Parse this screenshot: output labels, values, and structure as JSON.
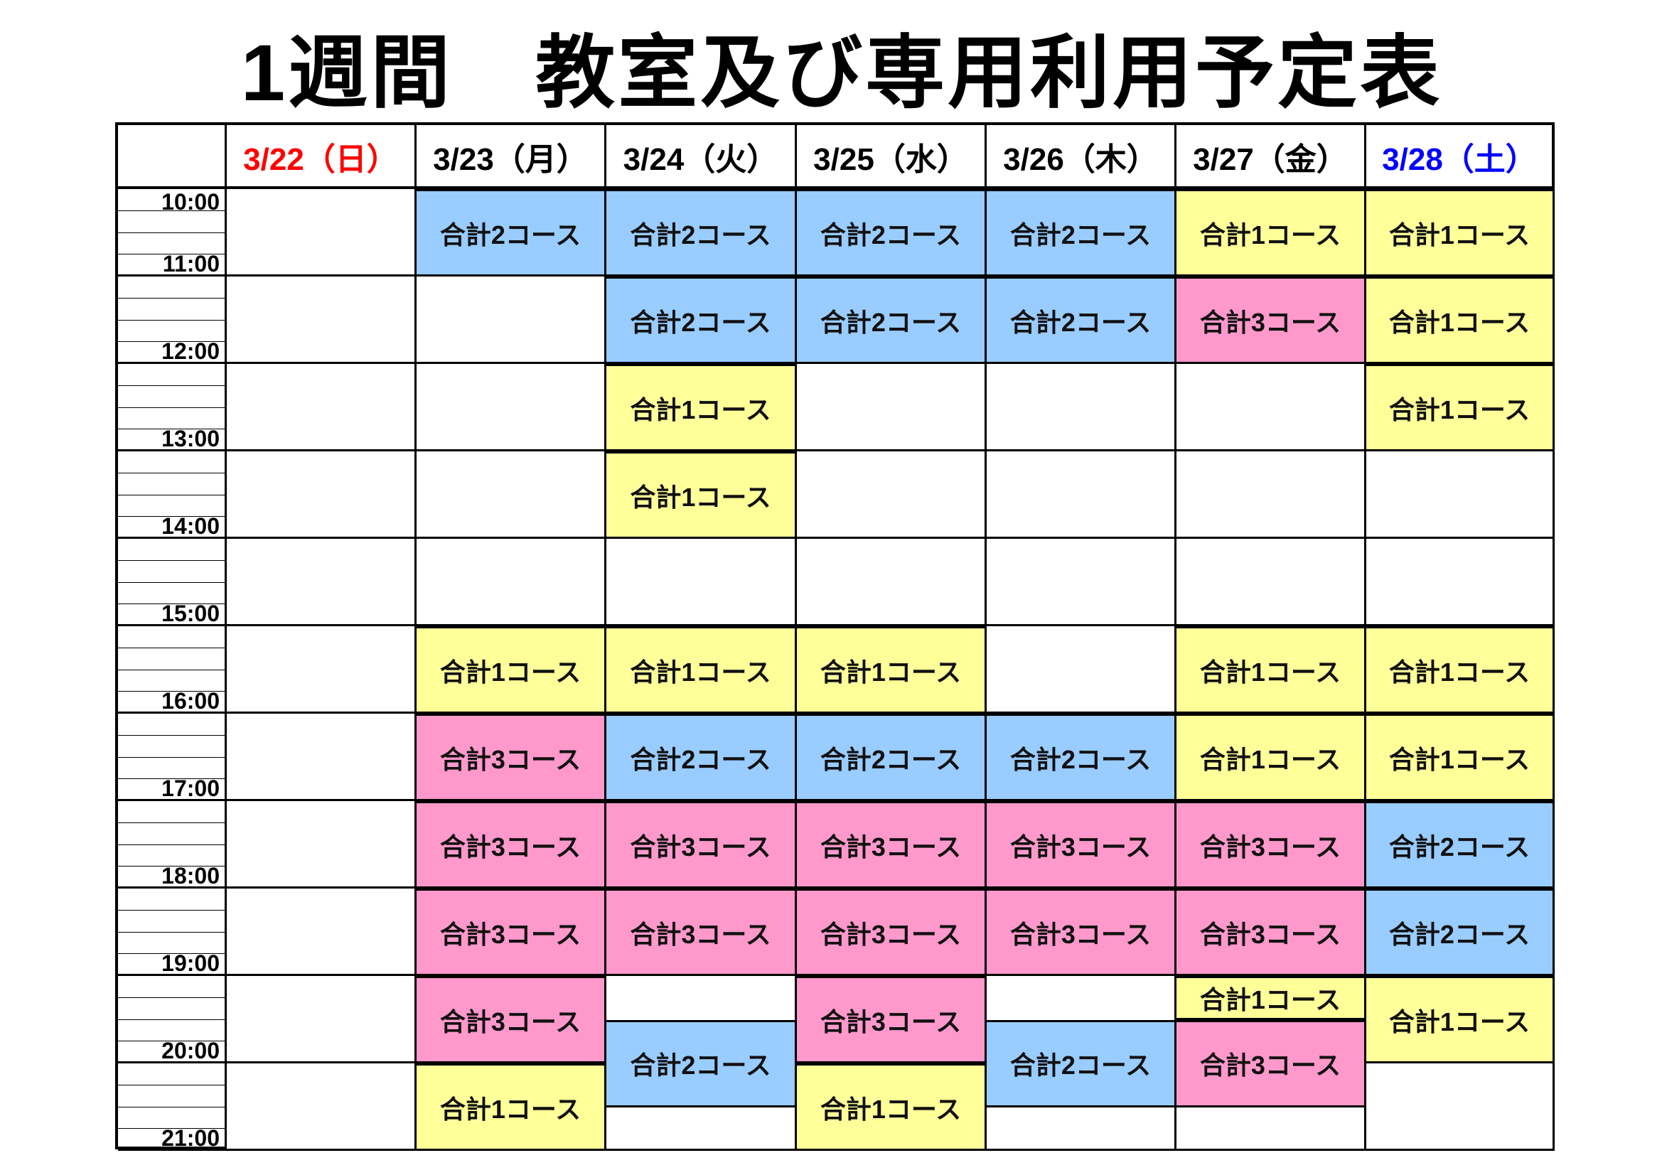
{
  "title": "1週間　教室及び専用利用予定表",
  "colors": {
    "count_1": "#ffff99",
    "count_2": "#99ccff",
    "count_3": "#ff99cc",
    "sunday": "#ff0000",
    "saturday": "#0000ff",
    "weekday": "#000000"
  },
  "times": [
    "10:00",
    "11:00",
    "12:00",
    "13:00",
    "14:00",
    "15:00",
    "16:00",
    "17:00",
    "18:00",
    "19:00",
    "20:00",
    "21:00"
  ],
  "days": [
    {
      "label": "3/22（日）",
      "kind": "sunday",
      "events": []
    },
    {
      "label": "3/23（月）",
      "kind": "weekday",
      "events": [
        {
          "start": "10:00",
          "end": "11:00",
          "count": 2,
          "label": "合計2コース"
        },
        {
          "start": "15:00",
          "end": "16:00",
          "count": 1,
          "label": "合計1コース"
        },
        {
          "start": "16:00",
          "end": "17:00",
          "count": 3,
          "label": "合計3コース"
        },
        {
          "start": "17:00",
          "end": "18:00",
          "count": 3,
          "label": "合計3コース"
        },
        {
          "start": "18:00",
          "end": "19:00",
          "count": 3,
          "label": "合計3コース"
        },
        {
          "start": "19:00",
          "end": "20:00",
          "count": 3,
          "label": "合計3コース"
        },
        {
          "start": "20:00",
          "end": "21:00",
          "count": 1,
          "label": "合計1コース"
        }
      ]
    },
    {
      "label": "3/24（火）",
      "kind": "weekday",
      "events": [
        {
          "start": "10:00",
          "end": "11:00",
          "count": 2,
          "label": "合計2コース"
        },
        {
          "start": "11:00",
          "end": "12:00",
          "count": 2,
          "label": "合計2コース"
        },
        {
          "start": "12:00",
          "end": "13:00",
          "count": 1,
          "label": "合計1コース"
        },
        {
          "start": "13:00",
          "end": "14:00",
          "count": 1,
          "label": "合計1コース"
        },
        {
          "start": "15:00",
          "end": "16:00",
          "count": 1,
          "label": "合計1コース"
        },
        {
          "start": "16:00",
          "end": "17:00",
          "count": 2,
          "label": "合計2コース"
        },
        {
          "start": "17:00",
          "end": "18:00",
          "count": 3,
          "label": "合計3コース"
        },
        {
          "start": "18:00",
          "end": "19:00",
          "count": 3,
          "label": "合計3コース"
        },
        {
          "start": "19:30",
          "end": "20:30",
          "count": 2,
          "label": "合計2コース"
        }
      ]
    },
    {
      "label": "3/25（水）",
      "kind": "weekday",
      "events": [
        {
          "start": "10:00",
          "end": "11:00",
          "count": 2,
          "label": "合計2コース"
        },
        {
          "start": "11:00",
          "end": "12:00",
          "count": 2,
          "label": "合計2コース"
        },
        {
          "start": "15:00",
          "end": "16:00",
          "count": 1,
          "label": "合計1コース"
        },
        {
          "start": "16:00",
          "end": "17:00",
          "count": 2,
          "label": "合計2コース"
        },
        {
          "start": "17:00",
          "end": "18:00",
          "count": 3,
          "label": "合計3コース"
        },
        {
          "start": "18:00",
          "end": "19:00",
          "count": 3,
          "label": "合計3コース"
        },
        {
          "start": "19:00",
          "end": "20:00",
          "count": 3,
          "label": "合計3コース"
        },
        {
          "start": "20:00",
          "end": "21:00",
          "count": 1,
          "label": "合計1コース"
        }
      ]
    },
    {
      "label": "3/26（木）",
      "kind": "weekday",
      "events": [
        {
          "start": "10:00",
          "end": "11:00",
          "count": 2,
          "label": "合計2コース"
        },
        {
          "start": "11:00",
          "end": "12:00",
          "count": 2,
          "label": "合計2コース"
        },
        {
          "start": "16:00",
          "end": "17:00",
          "count": 2,
          "label": "合計2コース"
        },
        {
          "start": "17:00",
          "end": "18:00",
          "count": 3,
          "label": "合計3コース"
        },
        {
          "start": "18:00",
          "end": "19:00",
          "count": 3,
          "label": "合計3コース"
        },
        {
          "start": "19:30",
          "end": "20:30",
          "count": 2,
          "label": "合計2コース"
        }
      ]
    },
    {
      "label": "3/27（金）",
      "kind": "weekday",
      "events": [
        {
          "start": "10:00",
          "end": "11:00",
          "count": 1,
          "label": "合計1コース"
        },
        {
          "start": "11:00",
          "end": "12:00",
          "count": 3,
          "label": "合計3コース"
        },
        {
          "start": "15:00",
          "end": "16:00",
          "count": 1,
          "label": "合計1コース"
        },
        {
          "start": "16:00",
          "end": "17:00",
          "count": 1,
          "label": "合計1コース"
        },
        {
          "start": "17:00",
          "end": "18:00",
          "count": 3,
          "label": "合計3コース"
        },
        {
          "start": "18:00",
          "end": "19:00",
          "count": 3,
          "label": "合計3コース"
        },
        {
          "start": "19:00",
          "end": "19:30",
          "count": 1,
          "label": "合計1コース"
        },
        {
          "start": "19:30",
          "end": "20:30",
          "count": 3,
          "label": "合計3コース"
        }
      ]
    },
    {
      "label": "3/28（土）",
      "kind": "saturday",
      "events": [
        {
          "start": "10:00",
          "end": "11:00",
          "count": 1,
          "label": "合計1コース"
        },
        {
          "start": "11:00",
          "end": "12:00",
          "count": 1,
          "label": "合計1コース"
        },
        {
          "start": "12:00",
          "end": "13:00",
          "count": 1,
          "label": "合計1コース"
        },
        {
          "start": "15:00",
          "end": "16:00",
          "count": 1,
          "label": "合計1コース"
        },
        {
          "start": "16:00",
          "end": "17:00",
          "count": 1,
          "label": "合計1コース"
        },
        {
          "start": "17:00",
          "end": "18:00",
          "count": 2,
          "label": "合計2コース"
        },
        {
          "start": "18:00",
          "end": "19:00",
          "count": 2,
          "label": "合計2コース"
        },
        {
          "start": "19:00",
          "end": "20:00",
          "count": 1,
          "label": "合計1コース"
        }
      ]
    }
  ]
}
